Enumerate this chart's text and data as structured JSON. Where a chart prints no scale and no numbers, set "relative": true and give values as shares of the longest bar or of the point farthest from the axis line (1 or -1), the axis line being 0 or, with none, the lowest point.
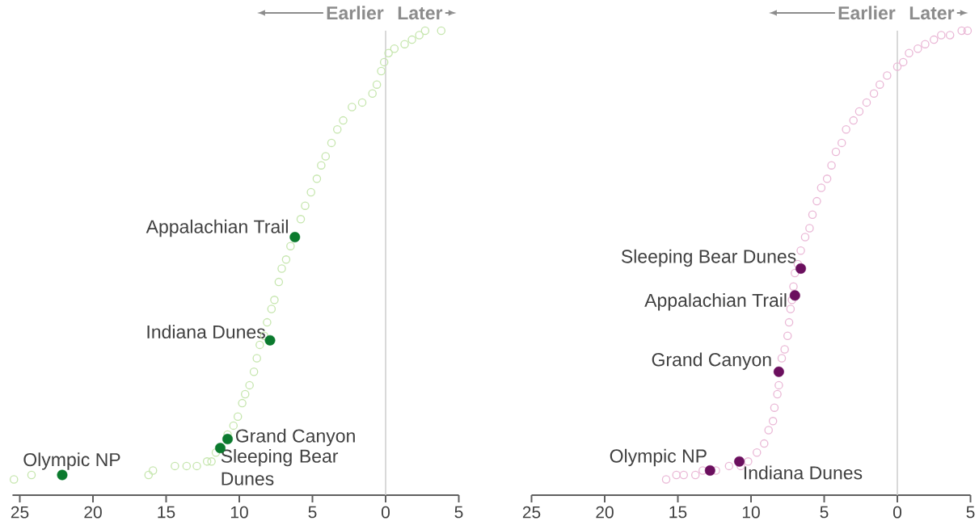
{
  "chart_data": [
    {
      "type": "scatter",
      "relative": true,
      "xlim": [
        25.5,
        -5
      ],
      "xticks": [
        25,
        20,
        15,
        10,
        5,
        0,
        {
          "value": -5,
          "label": "5"
        }
      ],
      "ref_lines": [
        {
          "axis": "x",
          "value": 0,
          "color": "#cccccc"
        }
      ],
      "series": [
        {
          "color": "#c6e6ae",
          "marker": "circle",
          "x": [
            25.4,
            24.2,
            16.2,
            15.9,
            14.4,
            13.6,
            12.9,
            12.2,
            11.9,
            11.6,
            11.2,
            10.8,
            10.4,
            10.1,
            9.8,
            9.6,
            9.3,
            9.0,
            8.8,
            8.6,
            8.3,
            8.1,
            7.8,
            7.6,
            7.3,
            7.1,
            6.8,
            6.5,
            6.2,
            5.8,
            5.5,
            5.1,
            4.7,
            4.4,
            4.1,
            3.7,
            3.3,
            2.9,
            2.3,
            1.6,
            0.9,
            0.6,
            0.3,
            0.1,
            -0.2,
            -0.6,
            -1.3,
            -1.8,
            -2.3,
            -2.7,
            -3.8
          ],
          "values": [
            0.0,
            0.01,
            0.01,
            0.02,
            0.03,
            0.03,
            0.03,
            0.04,
            0.04,
            0.06,
            null,
            0.1,
            0.12,
            0.14,
            0.17,
            0.19,
            0.21,
            0.24,
            0.27,
            0.3,
            0.32,
            0.35,
            0.38,
            0.4,
            0.44,
            0.47,
            0.49,
            0.52,
            null,
            0.58,
            0.61,
            0.64,
            0.67,
            0.7,
            0.72,
            0.75,
            0.78,
            0.8,
            0.83,
            0.84,
            0.86,
            0.88,
            0.91,
            0.93,
            0.95,
            0.96,
            0.97,
            0.98,
            0.99,
            1.0,
            1.0
          ]
        },
        {
          "color": "#0b7a2e",
          "marker": "circle",
          "x": [
            6.2,
            7.9,
            10.8,
            11.3,
            22.1
          ],
          "values": [
            0.54,
            0.31,
            0.09,
            0.07,
            0.01
          ]
        }
      ],
      "annotations": [
        "Earlier",
        "Later",
        {
          "text": "Appalachian Trail",
          "x": 6.2,
          "y": 0.54
        },
        {
          "text": "Indiana Dunes",
          "x": 7.9,
          "y": 0.31
        },
        {
          "text": "Grand Canyon",
          "x": 10.8,
          "y": 0.09
        },
        {
          "text": "Sleeping Bear Dunes",
          "x": 11.3,
          "y": 0.07
        },
        {
          "text": "Olympic NP",
          "x": 22.1,
          "y": 0.01
        }
      ]
    },
    {
      "type": "scatter",
      "relative": true,
      "xlim": [
        25,
        -5
      ],
      "xticks": [
        25,
        20,
        15,
        10,
        5,
        0,
        {
          "value": -5,
          "label": "5"
        }
      ],
      "ref_lines": [
        {
          "axis": "x",
          "value": 0,
          "color": "#cccccc"
        }
      ],
      "series": [
        {
          "color": "#eab8d6",
          "marker": "circle",
          "x": [
            15.8,
            15.1,
            14.6,
            13.8,
            13.3,
            12.4,
            11.5,
            10.7,
            10.2,
            9.6,
            9.1,
            8.8,
            8.5,
            8.4,
            8.2,
            8.1,
            8.0,
            7.9,
            7.7,
            7.5,
            7.4,
            7.3,
            7.2,
            7.1,
            7.0,
            6.8,
            6.6,
            6.3,
            6.0,
            5.8,
            5.5,
            5.2,
            4.8,
            4.5,
            4.2,
            3.8,
            3.5,
            3.0,
            2.6,
            2.1,
            1.6,
            1.2,
            0.7,
            0.0,
            -0.4,
            -0.8,
            -1.4,
            -1.9,
            -2.5,
            -3.0,
            -3.6,
            -4.4,
            -4.8
          ],
          "values": [
            0.0,
            0.01,
            0.01,
            0.01,
            0.02,
            0.02,
            0.03,
            0.03,
            0.04,
            0.06,
            0.08,
            0.11,
            0.13,
            0.16,
            0.19,
            0.21,
            null,
            0.27,
            0.29,
            0.32,
            0.35,
            0.38,
            0.4,
            0.43,
            0.46,
            0.48,
            0.51,
            0.54,
            0.56,
            0.59,
            0.62,
            0.65,
            0.67,
            0.7,
            0.73,
            0.75,
            0.78,
            0.8,
            0.82,
            0.84,
            0.86,
            0.88,
            0.9,
            0.92,
            0.93,
            0.95,
            0.96,
            0.97,
            0.98,
            0.99,
            0.99,
            1.0,
            1.0
          ]
        },
        {
          "color": "#6b0f5e",
          "marker": "circle",
          "x": [
            6.6,
            7.0,
            8.1,
            10.8,
            12.8
          ],
          "values": [
            0.47,
            0.41,
            0.24,
            0.04,
            0.02
          ]
        }
      ],
      "annotations": [
        "Earlier",
        "Later",
        {
          "text": "Sleeping Bear Dunes",
          "x": 6.6,
          "y": 0.47
        },
        {
          "text": "Appalachian Trail",
          "x": 7.0,
          "y": 0.41
        },
        {
          "text": "Grand Canyon",
          "x": 8.1,
          "y": 0.24
        },
        {
          "text": "Indiana Dunes",
          "x": 10.8,
          "y": 0.04
        },
        {
          "text": "Olympic NP",
          "x": 12.8,
          "y": 0.02
        }
      ]
    }
  ]
}
